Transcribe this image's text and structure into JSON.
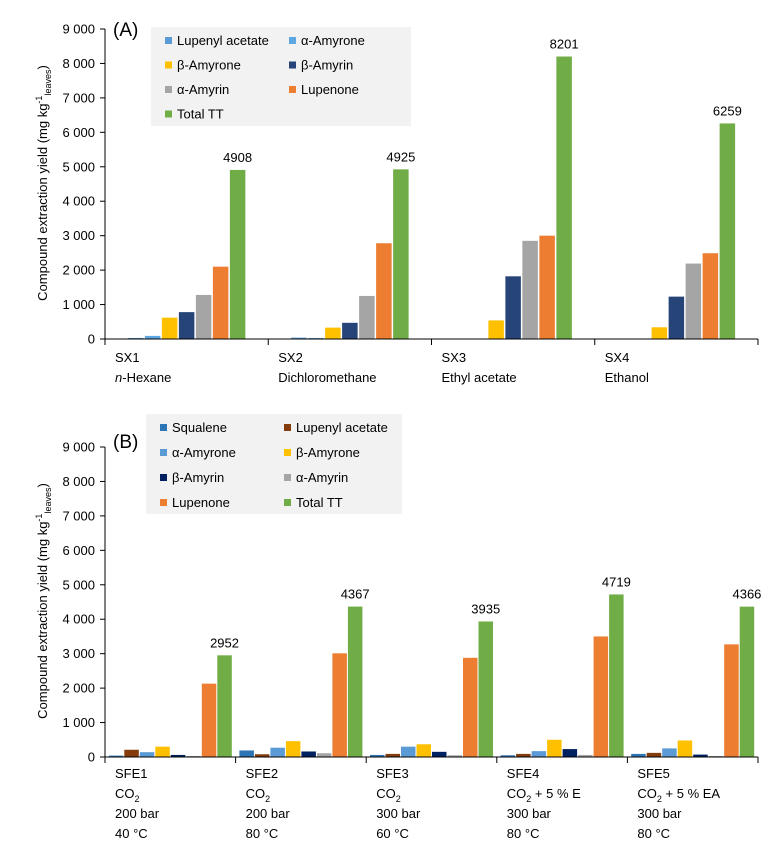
{
  "chart_data": [
    {
      "type": "bar",
      "panel_label": "(A)",
      "ylabel": "Compound extraction yield (mg kg",
      "ylabel_sup": "-1",
      "ylabel_sub": "leaves",
      "ylabel_close": ")",
      "ylim": [
        0,
        9000
      ],
      "yticks": [
        "0",
        "1 000",
        "2 000",
        "3 000",
        "4 000",
        "5 000",
        "6 000",
        "7 000",
        "8 000",
        "9 000"
      ],
      "ytick_values": [
        0,
        1000,
        2000,
        3000,
        4000,
        5000,
        6000,
        7000,
        8000,
        9000
      ],
      "legend_placement": "top-left",
      "categories": [
        {
          "lines": [
            "SX1",
            "n-Hexane"
          ],
          "italic_line2_prefix": "n",
          "line2_rest": "-Hexane"
        },
        {
          "lines": [
            "SX2",
            "Dichloromethane"
          ]
        },
        {
          "lines": [
            "SX3",
            "Ethyl acetate"
          ]
        },
        {
          "lines": [
            "SX4",
            "Ethanol"
          ]
        }
      ],
      "series": [
        {
          "name": "Lupenyl acetate",
          "color": "#5B9BD5",
          "values": [
            30,
            40,
            0,
            0
          ]
        },
        {
          "name": "α-Amyrone",
          "color": "#5DA7E3",
          "values": [
            90,
            30,
            0,
            0
          ]
        },
        {
          "name": "β-Amyrone",
          "color": "#FFC000",
          "values": [
            620,
            330,
            540,
            340
          ]
        },
        {
          "name": "β-Amyrin",
          "color": "#264478",
          "values": [
            780,
            470,
            1820,
            1230
          ]
        },
        {
          "name": "α-Amyrin",
          "color": "#A5A5A5",
          "values": [
            1280,
            1250,
            2850,
            2190
          ]
        },
        {
          "name": "Lupenone",
          "color": "#ED7D31",
          "values": [
            2100,
            2780,
            3000,
            2490
          ]
        },
        {
          "name": "Total TT",
          "color": "#70AD47",
          "values": [
            4908,
            4925,
            8201,
            6259
          ]
        }
      ],
      "total_labels": [
        "4908",
        "4925",
        "8201",
        "6259"
      ]
    },
    {
      "type": "bar",
      "panel_label": "(B)",
      "ylabel": "Compound extraction yield (mg kg",
      "ylabel_sup": "-1",
      "ylabel_sub": "leaves",
      "ylabel_close": ")",
      "ylim": [
        0,
        9000
      ],
      "yticks": [
        "0",
        "1 000",
        "2 000",
        "3 000",
        "4 000",
        "5 000",
        "6 000",
        "7 000",
        "8 000",
        "9 000"
      ],
      "ytick_values": [
        0,
        1000,
        2000,
        3000,
        4000,
        5000,
        6000,
        7000,
        8000,
        9000
      ],
      "legend_placement": "top-left",
      "categories": [
        {
          "lines": [
            "SFE1",
            "CO2",
            "200 bar",
            "40 °C"
          ]
        },
        {
          "lines": [
            "SFE2",
            "CO2",
            "200 bar",
            "80 °C"
          ]
        },
        {
          "lines": [
            "SFE3",
            "CO2",
            "300 bar",
            "60 °C"
          ]
        },
        {
          "lines": [
            "SFE4",
            "CO2 + 5 % E",
            "300 bar",
            "80 °C"
          ]
        },
        {
          "lines": [
            "SFE5",
            "CO2 + 5 % EA",
            "300 bar",
            "80 °C"
          ]
        }
      ],
      "series": [
        {
          "name": "Squalene",
          "color": "#2E75B6",
          "values": [
            40,
            190,
            60,
            50,
            90
          ]
        },
        {
          "name": "Lupenyl acetate",
          "color": "#843C0C",
          "values": [
            210,
            80,
            90,
            90,
            120
          ]
        },
        {
          "name": "α-Amyrone",
          "color": "#5B9BD5",
          "values": [
            140,
            270,
            300,
            170,
            250
          ]
        },
        {
          "name": "β-Amyrone",
          "color": "#FFC000",
          "values": [
            300,
            460,
            370,
            500,
            480
          ]
        },
        {
          "name": "β-Amyrin",
          "color": "#002060",
          "values": [
            60,
            160,
            150,
            230,
            70
          ]
        },
        {
          "name": "α-Amyrin",
          "color": "#A5A5A5",
          "values": [
            30,
            110,
            50,
            60,
            30
          ]
        },
        {
          "name": "Lupenone",
          "color": "#ED7D31",
          "values": [
            2130,
            3010,
            2880,
            3500,
            3270
          ]
        },
        {
          "name": "Total TT",
          "color": "#70AD47",
          "values": [
            2952,
            4367,
            3935,
            4719,
            4366
          ]
        }
      ],
      "total_labels": [
        "2952",
        "4367",
        "3935",
        "4719",
        "4366"
      ]
    }
  ]
}
